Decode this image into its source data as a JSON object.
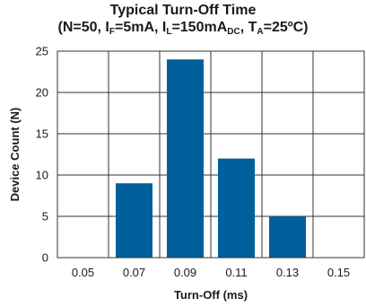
{
  "chart_data": {
    "type": "bar",
    "title": "Typical Turn-Off Time",
    "subtitle": {
      "n": "(N=50, I",
      "if_sub": "F",
      "if_val": "=5mA, I",
      "il_sub": "L",
      "il_val": "=150mA",
      "dc_sub": "DC",
      "ta": ", T",
      "ta_sub": "A",
      "ta_val": "=25ºC)"
    },
    "xlabel": "Turn-Off (ms)",
    "ylabel": "Device Count (N)",
    "categories": [
      "0.05",
      "0.07",
      "0.09",
      "0.11",
      "0.13",
      "0.15"
    ],
    "values": [
      0,
      9,
      24,
      12,
      5,
      0
    ],
    "ylim": [
      0,
      25
    ],
    "yticks": [
      "0",
      "5",
      "10",
      "15",
      "20",
      "25"
    ],
    "grid": true,
    "bar_color": "#00609c"
  }
}
